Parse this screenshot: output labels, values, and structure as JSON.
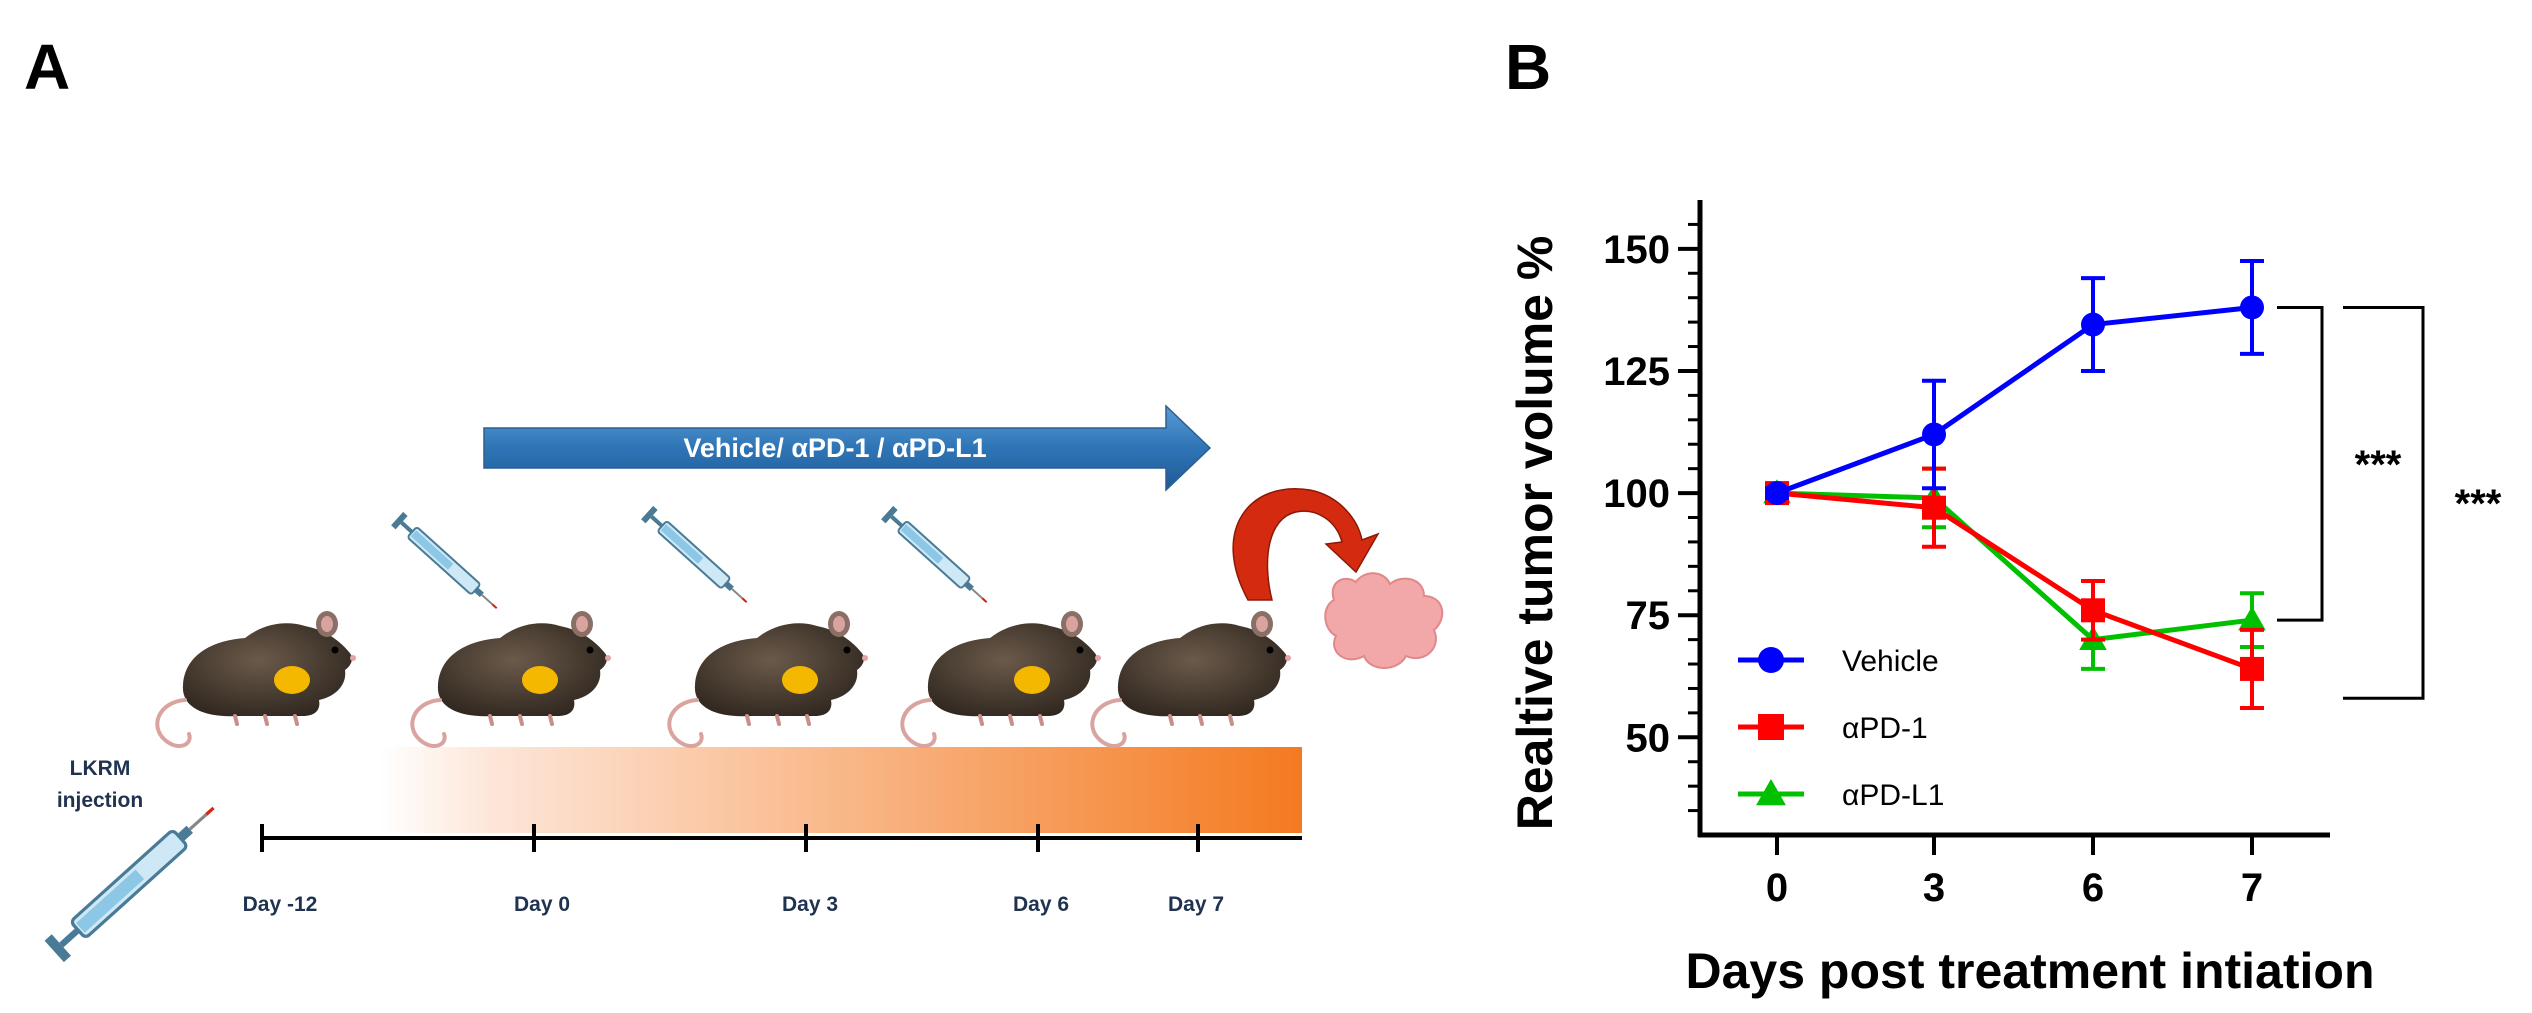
{
  "panels": {
    "a": "A",
    "b": "B"
  },
  "schematic": {
    "treatment_arrow_label": "Vehicle/ αPD-1 / αPD-L1",
    "injection_label_line1": "LKRM",
    "injection_label_line2": "injection",
    "timeline_days": [
      "Day -12",
      "Day 0",
      "Day 3",
      "Day 6",
      "Day 7"
    ],
    "colors": {
      "arrow": "#2e75b6",
      "gradient_end": "#f47a20",
      "tumor": "#f5b800",
      "collect_arrow": "#d42a10",
      "tissue": "#f2a8a8"
    }
  },
  "chart_data": {
    "type": "line",
    "xlabel": "Days post treatment intiation",
    "ylabel": "Realtive tumor volume %",
    "x": [
      0,
      3,
      6,
      7
    ],
    "x_tick_labels": [
      "0",
      "3",
      "6",
      "7"
    ],
    "ylim": [
      30,
      160
    ],
    "y_ticks": [
      50,
      75,
      100,
      125,
      150
    ],
    "y_tick_labels": [
      "50",
      "75",
      "100",
      "125",
      "150"
    ],
    "series": [
      {
        "name": "Vehicle",
        "color": "#0000ff",
        "marker": "circle",
        "values": [
          100,
          112,
          134.5,
          138
        ],
        "errors": [
          1,
          11,
          9.5,
          9.5
        ]
      },
      {
        "name": "αPD-1",
        "color": "#ff0000",
        "marker": "square",
        "values": [
          100,
          97,
          76,
          64
        ],
        "errors": [
          1,
          8,
          6,
          8
        ]
      },
      {
        "name": "αPD-L1",
        "color": "#00c000",
        "marker": "triangle",
        "values": [
          100,
          99,
          70,
          74
        ],
        "errors": [
          1,
          6,
          6,
          5.5
        ]
      }
    ],
    "significance": [
      {
        "label": "***",
        "between": [
          "Vehicle",
          "αPD-L1"
        ]
      },
      {
        "label": "***",
        "between": [
          "Vehicle",
          "αPD-1"
        ]
      }
    ],
    "legend_position": "bottom-left"
  }
}
